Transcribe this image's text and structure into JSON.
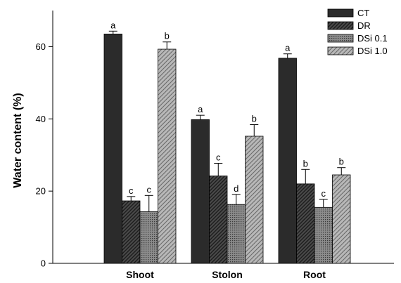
{
  "chart_data": {
    "type": "bar",
    "categories": [
      "Shoot",
      "Stolon",
      "Root"
    ],
    "ylabel": "Water content (%)",
    "ylim": [
      0,
      70
    ],
    "yticks": [
      0,
      20,
      40,
      60
    ],
    "legend_position": "top-right",
    "series": [
      {
        "name": "CT",
        "values": [
          63.5,
          39.8,
          56.8
        ],
        "errors": [
          0.8,
          1.2,
          1.2
        ],
        "letters": [
          "a",
          "a",
          "a"
        ],
        "color": "#2b2b2b",
        "pattern": "solid"
      },
      {
        "name": "DR",
        "values": [
          17.3,
          24.2,
          22.0
        ],
        "errors": [
          1.2,
          3.5,
          4.0
        ],
        "letters": [
          "c",
          "c",
          "b"
        ],
        "color": "#3a3a3a",
        "pattern": "dense-diagonal"
      },
      {
        "name": "DSi 0.1",
        "values": [
          14.3,
          16.3,
          15.5
        ],
        "errors": [
          4.5,
          2.8,
          2.2
        ],
        "letters": [
          "c",
          "d",
          "c"
        ],
        "color": "#6e6e6e",
        "pattern": "dotted"
      },
      {
        "name": "DSi 1.0",
        "values": [
          59.3,
          35.2,
          24.5
        ],
        "errors": [
          2.0,
          3.2,
          2.0
        ],
        "letters": [
          "b",
          "b",
          "b"
        ],
        "color": "#a8a8a8",
        "pattern": "sparse-diagonal"
      }
    ]
  }
}
